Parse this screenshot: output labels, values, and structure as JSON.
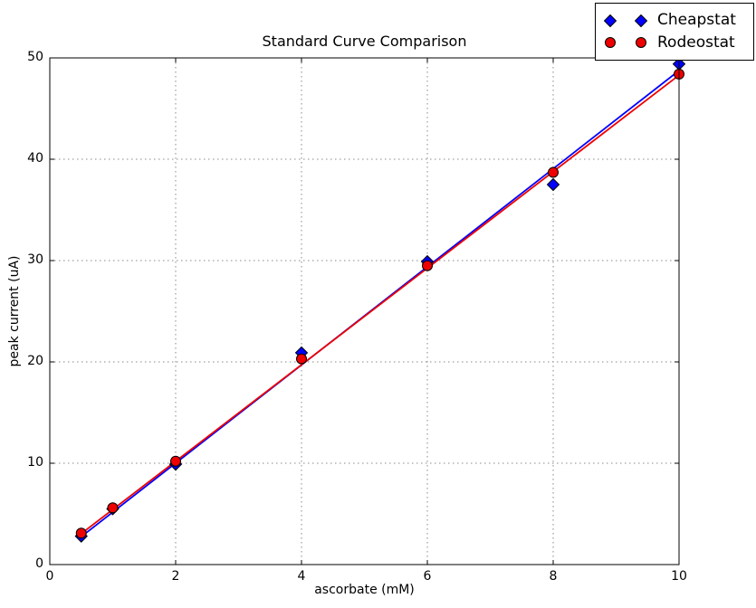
{
  "title": "Standard Curve Comparison",
  "colors": {
    "background": "#ffffff",
    "axis": "#000000",
    "grid": "#888888",
    "cheapstat_blue": "#0000ff",
    "rodeostat_red": "#ee0000",
    "marker_edge": "#000000"
  },
  "chart_data": {
    "type": "scatter",
    "title": "Standard Curve Comparison",
    "xlabel": "ascorbate (mM)",
    "ylabel": "peak current (uA)",
    "xlim": [
      0,
      10
    ],
    "ylim": [
      0,
      50
    ],
    "xticks": [
      0,
      2,
      4,
      6,
      8,
      10
    ],
    "yticks": [
      0,
      10,
      20,
      30,
      40,
      50
    ],
    "grid": true,
    "grid_style": "dotted",
    "legend_position": "upper right, partially above axes",
    "x": [
      0.5,
      1,
      2,
      4,
      6,
      8,
      10
    ],
    "series": [
      {
        "name": "Cheapstat",
        "marker": "diamond",
        "color": "#0000ff",
        "x": [
          0.5,
          1,
          2,
          4,
          6,
          8,
          10
        ],
        "y": [
          2.8,
          5.5,
          9.9,
          20.9,
          29.9,
          37.5,
          49.4
        ],
        "fit_line": {
          "x": [
            0.5,
            10
          ],
          "y": [
            2.75,
            48.75
          ]
        }
      },
      {
        "name": "Rodeostat",
        "marker": "circle",
        "color": "#ee0000",
        "x": [
          0.5,
          1,
          2,
          4,
          6,
          8,
          10
        ],
        "y": [
          3.1,
          5.6,
          10.2,
          20.3,
          29.5,
          38.7,
          48.4
        ],
        "fit_line": {
          "x": [
            0.5,
            10
          ],
          "y": [
            3.05,
            48.3
          ]
        }
      }
    ]
  }
}
